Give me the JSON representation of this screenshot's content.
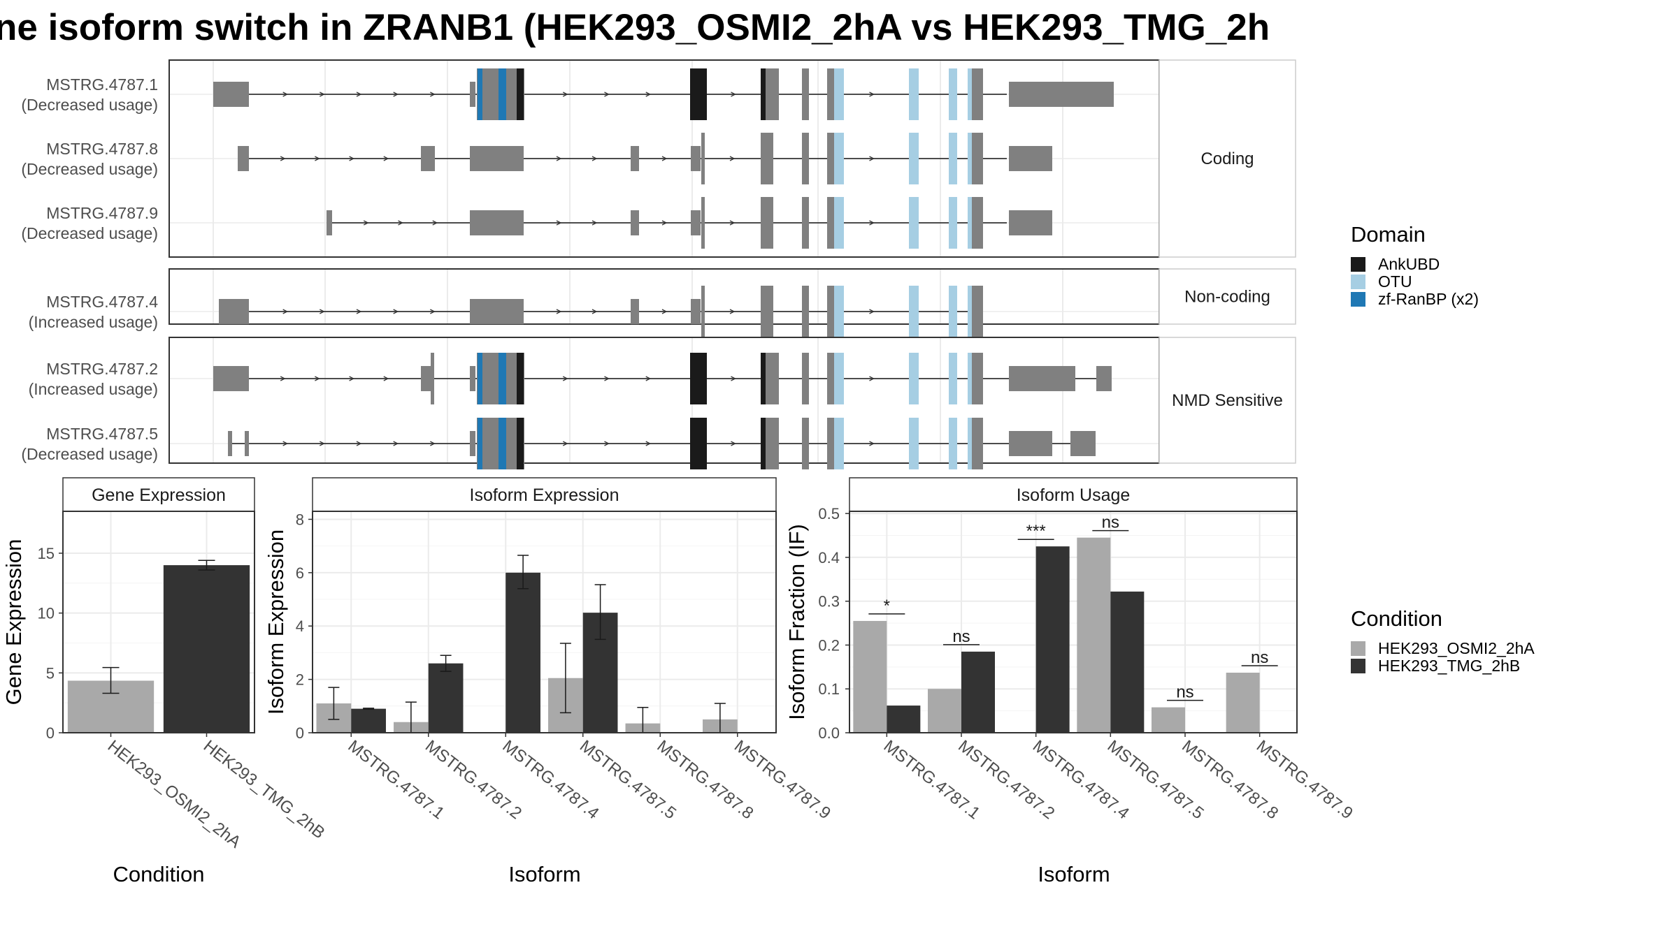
{
  "title": "ne isoform switch in ZRANB1 (HEK293_OSMI2_2hA vs HEK293_TMG_2h",
  "colors": {
    "exon": "#808080",
    "intron": "#333333",
    "AnkUBD": "#1a1a1a",
    "OTU": "#a6cee3",
    "zf-RanBP (x2)": "#1f78b4",
    "HEK293_OSMI2_2hA": "#a9a9a9",
    "HEK293_TMG_2hB": "#333333",
    "grid": "#ebebeb"
  },
  "transcript_panels": [
    {
      "label": "Coding",
      "isoforms": [
        {
          "id": "MSTRG.4787.1",
          "usage": "(Decreased usage)"
        },
        {
          "id": "MSTRG.4787.8",
          "usage": "(Decreased usage)"
        },
        {
          "id": "MSTRG.4787.9",
          "usage": "(Decreased usage)"
        }
      ]
    },
    {
      "label": "Non-coding",
      "isoforms": [
        {
          "id": "MSTRG.4787.4",
          "usage": "(Increased usage)"
        }
      ]
    },
    {
      "label": "NMD Sensitive",
      "isoforms": [
        {
          "id": "MSTRG.4787.2",
          "usage": "(Increased usage)"
        },
        {
          "id": "MSTRG.4787.5",
          "usage": "(Decreased usage)"
        }
      ]
    }
  ],
  "legend_domain": {
    "title": "Domain",
    "items": [
      {
        "label": "AnkUBD",
        "color": "#1a1a1a"
      },
      {
        "label": "OTU",
        "color": "#a6cee3"
      },
      {
        "label": "zf-RanBP (x2)",
        "color": "#1f78b4"
      }
    ]
  },
  "legend_condition": {
    "title": "Condition",
    "items": [
      {
        "label": "HEK293_OSMI2_2hA",
        "color": "#a9a9a9"
      },
      {
        "label": "HEK293_TMG_2hB",
        "color": "#333333"
      }
    ]
  },
  "chart_data": [
    {
      "type": "bar",
      "title": "Gene Expression",
      "xlabel": "Condition",
      "ylabel": "Gene Expression",
      "ylim": [
        0,
        18.5
      ],
      "yticks": [
        0,
        5,
        10,
        15
      ],
      "categories": [
        "HEK293_OSMI2_2hA",
        "HEK293_TMG_2hB"
      ],
      "values": [
        4.35,
        14.0
      ],
      "errors": [
        [
          3.3,
          5.45
        ],
        [
          13.6,
          14.4
        ]
      ]
    },
    {
      "type": "bar",
      "title": "Isoform Expression",
      "xlabel": "Isoform",
      "ylabel": "Isoform Expression",
      "ylim": [
        0,
        8.3
      ],
      "yticks": [
        0,
        2,
        4,
        6,
        8
      ],
      "categories": [
        "MSTRG.4787.1",
        "MSTRG.4787.2",
        "MSTRG.4787.4",
        "MSTRG.4787.5",
        "MSTRG.4787.8",
        "MSTRG.4787.9"
      ],
      "series": [
        {
          "name": "HEK293_OSMI2_2hA",
          "values": [
            1.1,
            0.4,
            0.0,
            2.05,
            0.35,
            0.5
          ],
          "errors": [
            [
              0.5,
              1.7
            ],
            [
              0.0,
              1.15
            ],
            [
              0.0,
              0.0
            ],
            [
              0.75,
              3.35
            ],
            [
              0.0,
              0.95
            ],
            [
              0.0,
              1.1
            ]
          ]
        },
        {
          "name": "HEK293_TMG_2hB",
          "values": [
            0.9,
            2.6,
            6.0,
            4.5,
            0.0,
            0.0
          ],
          "errors": [
            [
              0.88,
              0.92
            ],
            [
              2.3,
              2.9
            ],
            [
              5.4,
              6.65
            ],
            [
              3.5,
              5.55
            ],
            [
              0.0,
              0.0
            ],
            [
              0.0,
              0.0
            ]
          ]
        }
      ]
    },
    {
      "type": "bar",
      "title": "Isoform Usage",
      "xlabel": "Isoform",
      "ylabel": "Isoform Fraction (IF)",
      "ylim": [
        0,
        0.505
      ],
      "yticks": [
        0.0,
        0.1,
        0.2,
        0.3,
        0.4,
        0.5
      ],
      "ytick_labels": [
        "0.0",
        "0.1",
        "0.2",
        "0.3",
        "0.4",
        "0.5"
      ],
      "categories": [
        "MSTRG.4787.1",
        "MSTRG.4787.2",
        "MSTRG.4787.4",
        "MSTRG.4787.5",
        "MSTRG.4787.8",
        "MSTRG.4787.9"
      ],
      "series": [
        {
          "name": "HEK293_OSMI2_2hA",
          "values": [
            0.255,
            0.1,
            0.0,
            0.445,
            0.058,
            0.137
          ]
        },
        {
          "name": "HEK293_TMG_2hB",
          "values": [
            0.062,
            0.185,
            0.425,
            0.322,
            0.0,
            0.0
          ]
        }
      ],
      "significance": [
        "*",
        "ns",
        "***",
        "ns",
        "ns",
        "ns"
      ]
    }
  ]
}
